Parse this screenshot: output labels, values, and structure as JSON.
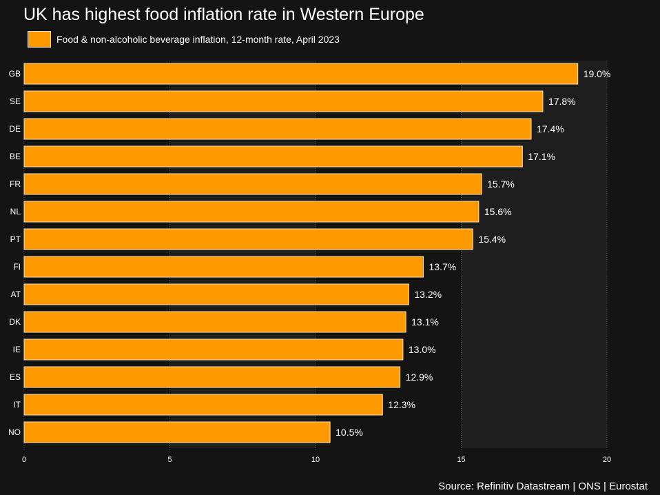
{
  "chart_data": {
    "type": "bar",
    "orientation": "horizontal",
    "title": "UK has highest food inflation rate in Western Europe",
    "legend": "Food & non-alcoholic beverage inflation, 12-month rate, April 2023",
    "source": "Source: Refinitiv Datastream | ONS | Eurostat",
    "categories": [
      "GB",
      "SE",
      "DE",
      "BE",
      "FR",
      "NL",
      "PT",
      "FI",
      "AT",
      "DK",
      "IE",
      "ES",
      "IT",
      "NO"
    ],
    "values": [
      19.0,
      17.8,
      17.4,
      17.1,
      15.7,
      15.6,
      15.4,
      13.7,
      13.2,
      13.1,
      13.0,
      12.9,
      12.3,
      10.5
    ],
    "value_labels": [
      "19.0%",
      "17.8%",
      "17.4%",
      "17.1%",
      "15.7%",
      "15.6%",
      "15.4%",
      "13.7%",
      "13.2%",
      "13.1%",
      "13.0%",
      "12.9%",
      "12.3%",
      "10.5%"
    ],
    "xlim": [
      0,
      20
    ],
    "xticks": [
      0,
      5,
      10,
      15,
      20
    ],
    "xtick_labels": [
      "0",
      "5",
      "10",
      "15",
      "20"
    ],
    "xlabel": "",
    "ylabel": "",
    "grid": true,
    "legend_position": "top-left",
    "colors": {
      "bar": "#FF9900",
      "bar_edge": "#f0e0c0",
      "background": "#141414",
      "plot_band": "#1e1e1e",
      "grid": "#555555",
      "text": "#ffffff"
    }
  }
}
